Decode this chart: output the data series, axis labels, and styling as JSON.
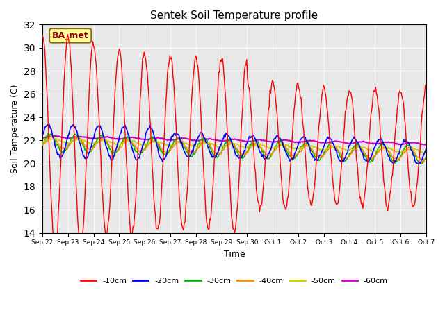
{
  "title": "Sentek Soil Temperature profile",
  "xlabel": "Time",
  "ylabel": "Soil Temperature (C)",
  "ylim": [
    14,
    32
  ],
  "yticks": [
    14,
    16,
    18,
    20,
    22,
    24,
    26,
    28,
    30,
    32
  ],
  "background_color": "#e8e8e8",
  "annotation_text": "BA_met",
  "annotation_bgcolor": "#ffff99",
  "annotation_edgecolor": "#8B6914",
  "annotation_textcolor": "#8B0000",
  "series_colors": {
    "-10cm": "#ff0000",
    "-20cm": "#0000ff",
    "-30cm": "#00bb00",
    "-40cm": "#ff8800",
    "-50cm": "#cccc00",
    "-60cm": "#cc00cc"
  },
  "x_tick_labels": [
    "Sep 22",
    "Sep 23",
    "Sep 24",
    "Sep 25",
    "Sep 26",
    "Sep 27",
    "Sep 28",
    "Sep 29",
    "Sep 30",
    "Oct 1",
    "Oct 2",
    "Oct 3",
    "Oct 4",
    "Oct 5",
    "Oct 6",
    "Oct 7"
  ],
  "num_days": 15,
  "num_points": 480
}
